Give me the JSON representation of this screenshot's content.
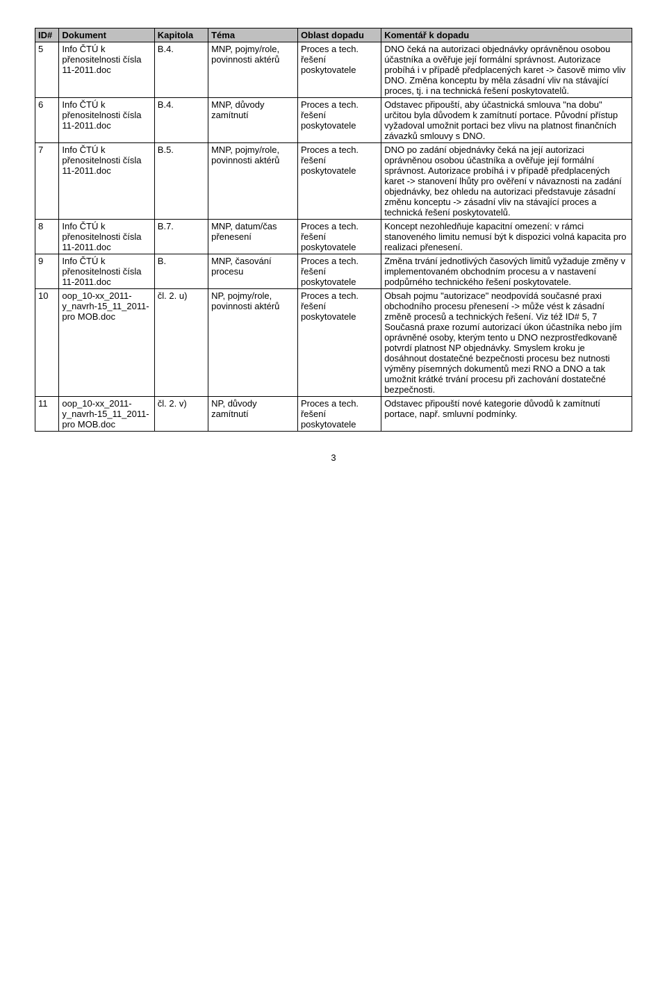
{
  "columns": [
    "ID#",
    "Dokument",
    "Kapitola",
    "Téma",
    "Oblast dopadu",
    "Komentář k dopadu"
  ],
  "rows": [
    {
      "id": "5",
      "doc": "Info ČTÚ k přenositelnosti čísla 11-2011.doc",
      "chap": "B.4.",
      "topic": "MNP, pojmy/role, povinnosti aktérů",
      "area": "Proces a tech. řešení poskytovatele",
      "comment": "DNO čeká na autorizaci objednávky oprávněnou osobou účastníka a ověřuje její formální správnost. Autorizace probíhá i v případě předplacených karet -> časově mimo vliv DNO. Změna konceptu by měla zásadní vliv na stávající proces, tj. i na technická řešení poskytovatelů."
    },
    {
      "id": "6",
      "doc": "Info ČTÚ k přenositelnosti čísla 11-2011.doc",
      "chap": "B.4.",
      "topic": "MNP, důvody zamítnutí",
      "area": "Proces a tech. řešení poskytovatele",
      "comment": "Odstavec připouští, aby účastnická smlouva \"na dobu\" určitou byla důvodem k zamítnutí portace. Původní přístup vyžadoval umožnit portaci bez vlivu na platnost finančních závazků smlouvy s DNO."
    },
    {
      "id": "7",
      "doc": "Info ČTÚ k přenositelnosti čísla 11-2011.doc",
      "chap": "B.5.",
      "topic": "MNP, pojmy/role, povinnosti aktérů",
      "area": "Proces a tech. řešení poskytovatele",
      "comment": "DNO po zadání objednávky čeká na její autorizaci oprávněnou osobou účastníka a ověřuje její formální správnost. Autorizace probíhá i v případě předplacených karet -> stanovení lhůty pro ověření v návaznosti na zadání objednávky, bez ohledu na autorizaci představuje zásadní změnu konceptu -> zásadní vliv na stávající proces a technická řešení poskytovatelů."
    },
    {
      "id": "8",
      "doc": "Info ČTÚ k přenositelnosti čísla 11-2011.doc",
      "chap": "B.7.",
      "topic": "MNP, datum/čas přenesení",
      "area": "Proces a tech. řešení poskytovatele",
      "comment": "Koncept nezohledňuje kapacitní omezení: v rámci stanoveného limitu nemusí být k dispozici volná kapacita pro realizaci přenesení."
    },
    {
      "id": "9",
      "doc": "Info ČTÚ k přenositelnosti čísla 11-2011.doc",
      "chap": "B.",
      "topic": "MNP, časování procesu",
      "area": "Proces a tech. řešení poskytovatele",
      "comment": "Změna trvání jednotlivých časových limitů vyžaduje změny v implementovaném obchodním procesu a v nastavení podpůrného technického řešení poskytovatele."
    },
    {
      "id": "10",
      "doc": "oop_10-xx_2011-y_navrh-15_11_2011-pro MOB.doc",
      "chap": "čl. 2. u)",
      "topic": "NP, pojmy/role, povinnosti aktérů",
      "area": "Proces a tech. řešení poskytovatele",
      "comment": "Obsah pojmu \"autorizace\" neodpovídá současné praxi obchodního procesu přenesení -> může vést k zásadní změně procesů a technických řešení. Viz též  ID# 5, 7\nSoučasná praxe rozumí autorizací úkon účastníka nebo jím oprávněné osoby, kterým tento u DNO nezprostředkovaně potvrdí platnost NP objednávky. Smyslem kroku je dosáhnout dostatečné bezpečnosti procesu bez nutnosti výměny písemných dokumentů mezi RNO a DNO a tak umožnit krátké trvání procesu při zachování dostatečné bezpečnosti."
    },
    {
      "id": "11",
      "doc": "oop_10-xx_2011-y_navrh-15_11_2011-pro MOB.doc",
      "chap": "čl. 2. v)",
      "topic": "NP, důvody zamítnutí",
      "area": "Proces a tech. řešení poskytovatele",
      "comment": "Odstavec připouští nové kategorie důvodů k zamítnutí portace, např. smluvní podmínky."
    }
  ],
  "pageNumber": "3"
}
